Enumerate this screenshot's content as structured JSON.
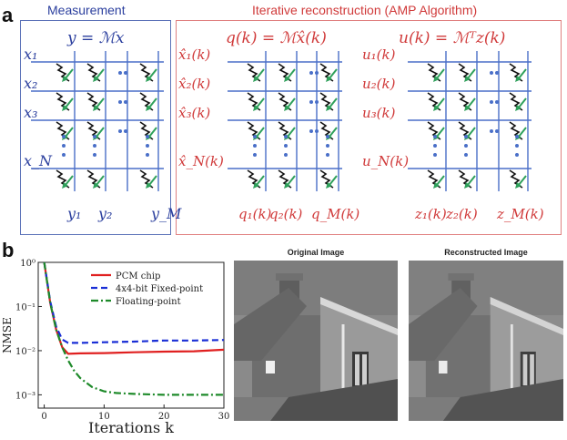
{
  "panel_a": {
    "label": "a",
    "measurement": {
      "title": "Measurement",
      "equation": "y = ℳx",
      "row_labels": [
        "x₁",
        "x₂",
        "x₃",
        "x_N"
      ],
      "col_labels": [
        "y₁",
        "y₂",
        "y_M"
      ]
    },
    "reconstruction": {
      "title": "Iterative reconstruction (AMP Algorithm)",
      "left": {
        "equation": "q(k) = ℳx̂(k)",
        "row_labels": [
          "x̂₁(k)",
          "x̂₂(k)",
          "x̂₃(k)",
          "x̂_N(k)"
        ],
        "col_labels": [
          "q₁(k)",
          "q₂(k)",
          "q_M(k)"
        ]
      },
      "right": {
        "equation": "u(k) = ℳᵀz(k)",
        "row_labels": [
          "u₁(k)",
          "u₂(k)",
          "u₃(k)",
          "u_N(k)"
        ],
        "col_labels": [
          "z₁(k)",
          "z₂(k)",
          "z_M(k)"
        ]
      }
    },
    "colors": {
      "blue": "#2b3f9e",
      "red": "#d03a3a",
      "green": "#2ea05a"
    }
  },
  "panel_b": {
    "label": "b",
    "original_title": "Original Image",
    "reconstructed_title": "Reconstructed Image"
  },
  "chart_data": {
    "type": "line",
    "title": "",
    "xlabel": "Iterations k",
    "ylabel": "NMSE",
    "yscale": "log",
    "xlim": [
      -1,
      30
    ],
    "ylim": [
      0.0005,
      1
    ],
    "xticks": [
      0,
      10,
      20,
      30
    ],
    "yticks": [
      {
        "value": 1,
        "label": "10⁰"
      },
      {
        "value": 0.1,
        "label": "10⁻¹"
      },
      {
        "value": 0.01,
        "label": "10⁻²"
      },
      {
        "value": 0.001,
        "label": "10⁻³"
      }
    ],
    "legend_position": "top-right",
    "series": [
      {
        "name": "PCM chip",
        "color": "#e02020",
        "style": "solid",
        "x": [
          0,
          1,
          2,
          3,
          4,
          6,
          10,
          15,
          20,
          25,
          30
        ],
        "y": [
          1.0,
          0.12,
          0.03,
          0.012,
          0.0085,
          0.0087,
          0.0088,
          0.0092,
          0.0095,
          0.0097,
          0.0105
        ]
      },
      {
        "name": "4x4-bit Fixed-point",
        "color": "#1a2fd6",
        "style": "dashed",
        "x": [
          0,
          1,
          2,
          3,
          4,
          6,
          10,
          15,
          20,
          25,
          30
        ],
        "y": [
          1.0,
          0.13,
          0.035,
          0.018,
          0.015,
          0.015,
          0.0155,
          0.016,
          0.017,
          0.017,
          0.0175
        ]
      },
      {
        "name": "Floating-point",
        "color": "#1e8a2a",
        "style": "dashdot",
        "x": [
          0,
          1,
          2,
          3,
          4,
          5,
          6,
          8,
          10,
          12,
          15,
          20,
          25,
          30
        ],
        "y": [
          1.0,
          0.12,
          0.03,
          0.012,
          0.006,
          0.0035,
          0.0024,
          0.0015,
          0.0012,
          0.0011,
          0.00105,
          0.001,
          0.001,
          0.001
        ]
      }
    ]
  }
}
